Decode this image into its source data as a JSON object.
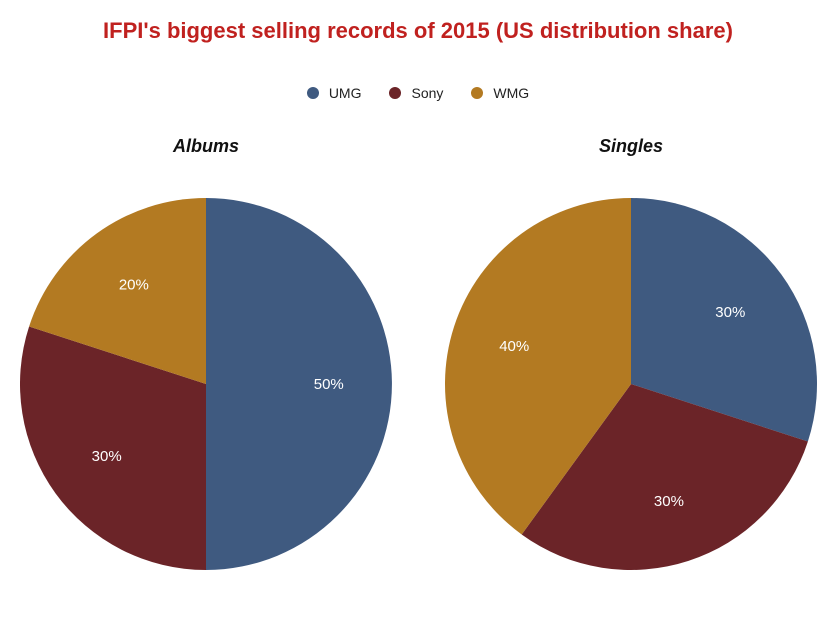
{
  "title": "IFPI's biggest selling records of 2015 (US distribution share)",
  "legend": [
    {
      "name": "UMG",
      "color": "#3f5a80"
    },
    {
      "name": "Sony",
      "color": "#6b2428"
    },
    {
      "name": "WMG",
      "color": "#b37a22"
    }
  ],
  "chart_data": [
    {
      "type": "pie",
      "title": "Albums",
      "categories": [
        "UMG",
        "Sony",
        "WMG"
      ],
      "values": [
        50,
        30,
        20
      ],
      "labels": [
        "50%",
        "30%",
        "20%"
      ],
      "colors": [
        "#3f5a80",
        "#6b2428",
        "#b37a22"
      ],
      "legend_position": "top"
    },
    {
      "type": "pie",
      "title": "Singles",
      "categories": [
        "UMG",
        "Sony",
        "WMG"
      ],
      "values": [
        30,
        30,
        40
      ],
      "labels": [
        "30%",
        "30%",
        "40%"
      ],
      "colors": [
        "#3f5a80",
        "#6b2428",
        "#b37a22"
      ],
      "legend_position": "top"
    }
  ]
}
